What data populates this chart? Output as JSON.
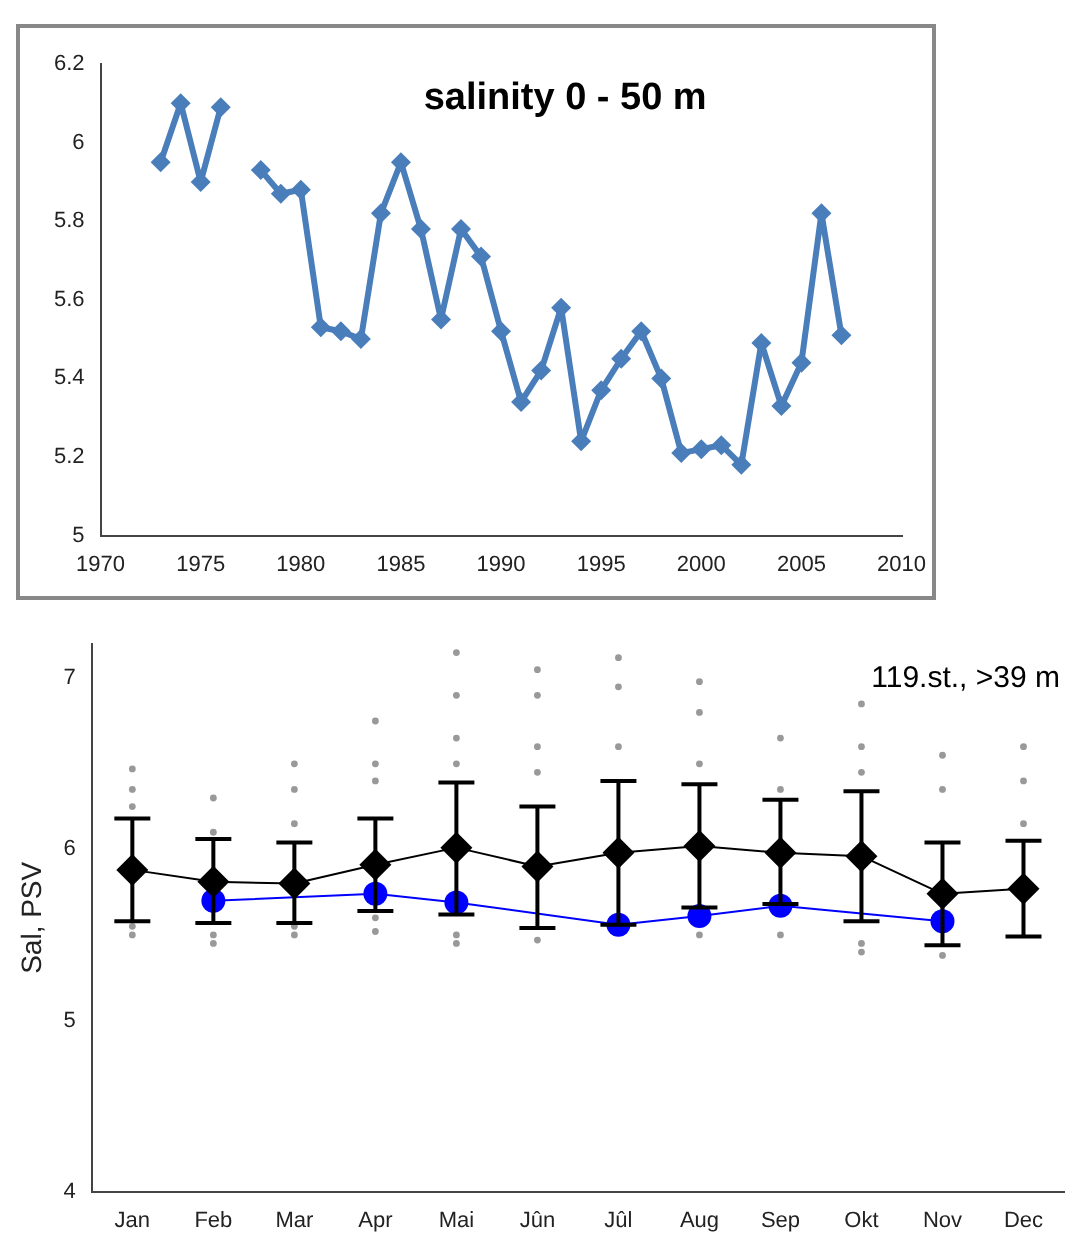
{
  "chart_data": [
    {
      "type": "line",
      "title": "salinity 0 - 50 m",
      "x": [
        1973,
        1974,
        1975,
        1976,
        1977,
        1978,
        1979,
        1980,
        1981,
        1982,
        1983,
        1984,
        1985,
        1986,
        1987,
        1988,
        1989,
        1990,
        1991,
        1992,
        1993,
        1994,
        1995,
        1996,
        1997,
        1998,
        1999,
        2000,
        2001,
        2002,
        2003,
        2004,
        2005,
        2006,
        2007
      ],
      "values": [
        5.95,
        6.1,
        5.9,
        6.09,
        null,
        5.93,
        5.87,
        5.88,
        5.53,
        5.52,
        5.5,
        5.82,
        5.95,
        5.78,
        5.55,
        5.78,
        5.71,
        5.52,
        5.34,
        5.42,
        5.58,
        5.24,
        5.37,
        5.45,
        5.52,
        5.4,
        5.21,
        5.22,
        5.23,
        5.18,
        5.49,
        5.33,
        5.44,
        5.82,
        5.51
      ],
      "color": "#4a7ebb",
      "marker": "diamond",
      "xlim": [
        1970,
        2010
      ],
      "xticks": [
        1970,
        1975,
        1980,
        1985,
        1990,
        1995,
        2000,
        2005,
        2010
      ],
      "ylim": [
        5,
        6.2
      ],
      "yticks": [
        5,
        5.2,
        5.4,
        5.6,
        5.8,
        6,
        6.2
      ],
      "grid": false,
      "legend": false
    },
    {
      "type": "line",
      "ylabel": "Sal, PSV",
      "annotations": [
        "119.st., >39 m"
      ],
      "categories": [
        "Jan",
        "Feb",
        "Mar",
        "Apr",
        "Mai",
        "Jûn",
        "Jûl",
        "Aug",
        "Sep",
        "Okt",
        "Nov",
        "Dec"
      ],
      "series": [
        {
          "type": "scatter",
          "color": "#999999",
          "marker": "circle",
          "x": [
            "Jan",
            "Jan",
            "Jan",
            "Jan",
            "Jan",
            "Feb",
            "Feb",
            "Feb",
            "Feb",
            "Mar",
            "Mar",
            "Mar",
            "Mar",
            "Mar",
            "Apr",
            "Apr",
            "Apr",
            "Apr",
            "Apr",
            "Mai",
            "Mai",
            "Mai",
            "Mai",
            "Mai",
            "Mai",
            "Jûn",
            "Jûn",
            "Jûn",
            "Jûn",
            "Jûn",
            "Jûl",
            "Jûl",
            "Jûl",
            "Jûl",
            "Aug",
            "Aug",
            "Aug",
            "Aug",
            "Sep",
            "Sep",
            "Sep",
            "Okt",
            "Okt",
            "Okt",
            "Okt",
            "Okt",
            "Nov",
            "Nov",
            "Nov",
            "Dec",
            "Dec",
            "Dec"
          ],
          "values": [
            6.47,
            6.35,
            6.25,
            5.5,
            5.55,
            6.3,
            6.1,
            5.45,
            5.5,
            6.5,
            6.35,
            6.15,
            5.5,
            5.55,
            6.75,
            6.5,
            6.4,
            5.52,
            5.6,
            7.15,
            6.9,
            6.65,
            6.5,
            5.45,
            5.5,
            7.05,
            6.9,
            6.6,
            6.45,
            5.47,
            7.12,
            6.95,
            6.6,
            null,
            6.98,
            6.8,
            6.5,
            5.5,
            6.65,
            6.35,
            5.5,
            6.85,
            6.6,
            6.45,
            5.4,
            5.45,
            6.55,
            6.35,
            5.38,
            6.6,
            6.4,
            6.15
          ]
        },
        {
          "color": "#000000",
          "marker": "diamond",
          "values": [
            5.88,
            5.81,
            5.8,
            5.91,
            6.01,
            5.9,
            5.98,
            6.02,
            5.98,
            5.96,
            5.74,
            5.77
          ],
          "errors": [
            [
              5.58,
              6.18
            ],
            [
              5.57,
              6.06
            ],
            [
              5.57,
              6.04
            ],
            [
              5.64,
              6.18
            ],
            [
              5.62,
              6.39
            ],
            [
              5.54,
              6.25
            ],
            [
              5.56,
              6.4
            ],
            [
              5.66,
              6.38
            ],
            [
              5.68,
              6.29
            ],
            [
              5.58,
              6.34
            ],
            [
              5.44,
              6.04
            ],
            [
              5.49,
              6.05
            ]
          ]
        },
        {
          "color": "#0000ff",
          "marker": "circle",
          "values": [
            null,
            5.7,
            null,
            5.74,
            5.69,
            null,
            5.56,
            5.61,
            5.67,
            null,
            5.58,
            null
          ]
        }
      ],
      "ylim": [
        4,
        7.2
      ],
      "yticks": [
        4,
        5,
        6,
        7
      ],
      "grid": false,
      "legend": false
    }
  ]
}
